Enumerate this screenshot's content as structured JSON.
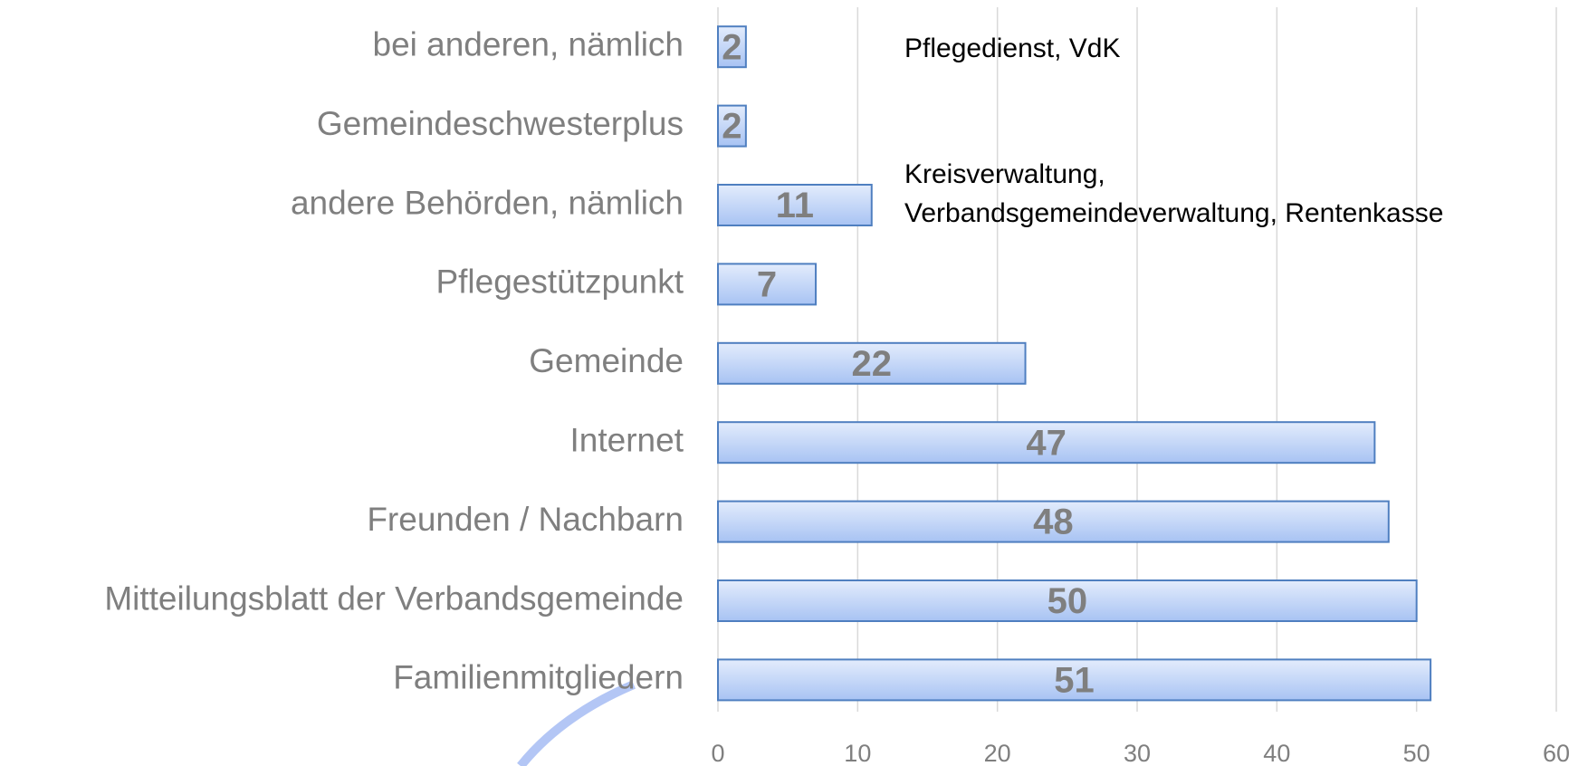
{
  "chart_data": {
    "type": "bar",
    "orientation": "horizontal",
    "categories": [
      "bei anderen, nämlich",
      "Gemeindeschwesterplus",
      "andere Behörden, nämlich",
      "Pflegestützpunkt",
      "Gemeinde",
      "Internet",
      "Freunden / Nachbarn",
      "Mitteilungsblatt der Verbandsgemeinde",
      "Familienmitgliedern"
    ],
    "values": [
      2,
      2,
      11,
      7,
      22,
      47,
      48,
      50,
      51
    ],
    "color": "#b9d0f7",
    "xlim": [
      0,
      60
    ],
    "xticks": [
      0,
      10,
      20,
      30,
      40,
      50,
      60
    ],
    "grid": true,
    "annotations": [
      "Pflegedienst, VdK",
      "Kreisverwaltung,",
      "Verbandsgemeindeverwaltung, Rentenkasse"
    ]
  }
}
